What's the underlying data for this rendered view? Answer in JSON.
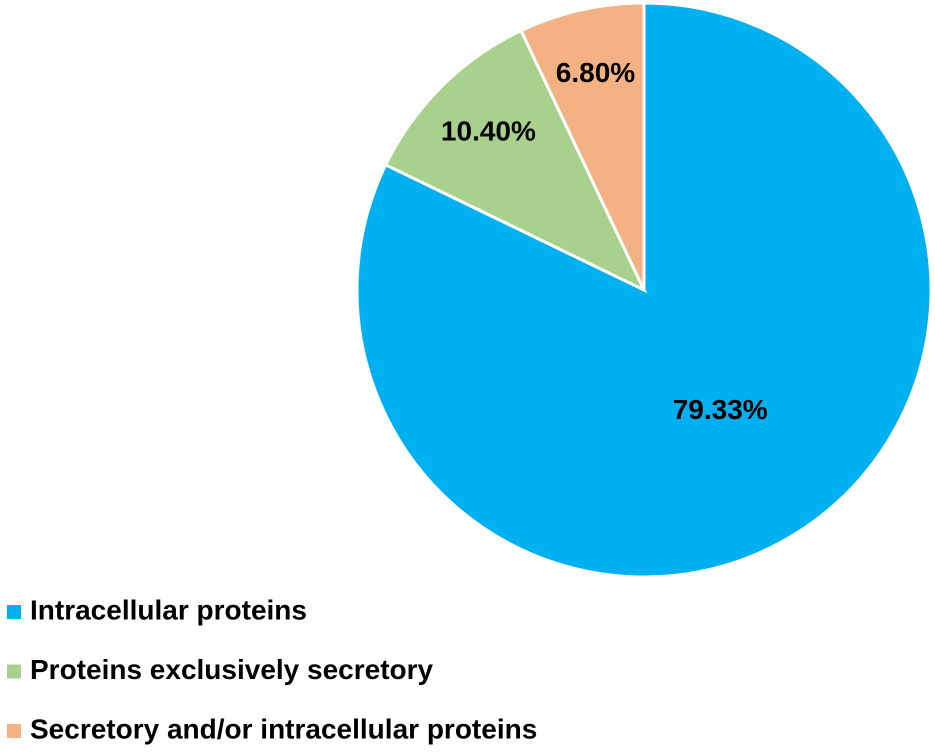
{
  "chart_data": {
    "type": "pie",
    "categories": [
      "Intracellular proteins",
      "Proteins exclusively secretory",
      "Secretory and/or intracellular proteins"
    ],
    "values": [
      79.33,
      10.4,
      6.8
    ],
    "value_labels": [
      "79.33%",
      "10.40%",
      "6.80%"
    ],
    "colors": [
      "#00b0f0",
      "#a9d18e",
      "#f4b183"
    ]
  }
}
